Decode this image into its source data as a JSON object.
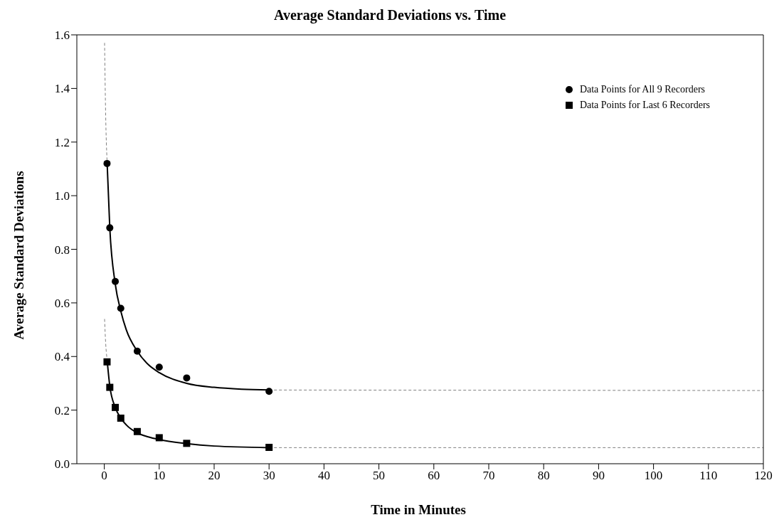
{
  "chart_data": {
    "type": "scatter",
    "title": "Average Standard Deviations vs. Time",
    "xlabel": "Time in Minutes",
    "ylabel": "Average Standard Deviations",
    "xlim": [
      -5,
      120
    ],
    "xticks": [
      0,
      10,
      20,
      30,
      40,
      50,
      60,
      70,
      80,
      90,
      100,
      110,
      120
    ],
    "ylim": [
      0,
      1.6
    ],
    "yticks": [
      {
        "value": 0,
        "label": "0.0"
      },
      0.2,
      0.4,
      0.6,
      0.8,
      {
        "value": 1,
        "label": "1.0"
      },
      1.2,
      1.4,
      1.6
    ],
    "grid": false,
    "legend": "top right",
    "series": [
      {
        "name": "Data Points for All 9 Recorders",
        "marker": "circle",
        "color": "#000000",
        "x": [
          0.5,
          1,
          2,
          3,
          6,
          10,
          15,
          30
        ],
        "values": [
          1.12,
          0.88,
          0.68,
          0.58,
          0.42,
          0.36,
          0.32,
          0.27
        ]
      },
      {
        "name": "Data Points for Last 6 Recorders",
        "marker": "square",
        "color": "#000000",
        "x": [
          0.5,
          1,
          2,
          3,
          6,
          10,
          15,
          30
        ],
        "values": [
          0.38,
          0.285,
          0.21,
          0.17,
          0.12,
          0.097,
          0.076,
          0.061
        ]
      },
      {
        "type": "line",
        "line_style": "solid",
        "color": "#000000",
        "x": [
          0.5,
          1,
          2,
          3,
          4,
          6,
          8,
          10,
          15,
          20,
          25,
          30
        ],
        "values": [
          1.13,
          0.88,
          0.67,
          0.57,
          0.5,
          0.42,
          0.37,
          0.34,
          0.3,
          0.285,
          0.278,
          0.275
        ]
      },
      {
        "type": "line",
        "line_style": "dashed",
        "color": "#808080",
        "x": [
          0.05,
          0.25,
          0.5
        ],
        "values": [
          1.57,
          1.3,
          1.13
        ]
      },
      {
        "type": "line",
        "line_style": "dashed",
        "color": "#808080",
        "x": [
          30,
          120
        ],
        "values": [
          0.275,
          0.273
        ]
      },
      {
        "type": "line",
        "line_style": "solid",
        "color": "#000000",
        "x": [
          0.5,
          1,
          2,
          3,
          4,
          6,
          8,
          10,
          15,
          20,
          30
        ],
        "values": [
          0.39,
          0.29,
          0.21,
          0.17,
          0.145,
          0.115,
          0.1,
          0.09,
          0.075,
          0.066,
          0.06
        ]
      },
      {
        "type": "line",
        "line_style": "dashed",
        "color": "#808080",
        "x": [
          0.05,
          0.25,
          0.5
        ],
        "values": [
          0.54,
          0.45,
          0.39
        ]
      },
      {
        "type": "line",
        "line_style": "dashed",
        "color": "#808080",
        "x": [
          30,
          120
        ],
        "values": [
          0.06,
          0.06
        ]
      }
    ]
  }
}
